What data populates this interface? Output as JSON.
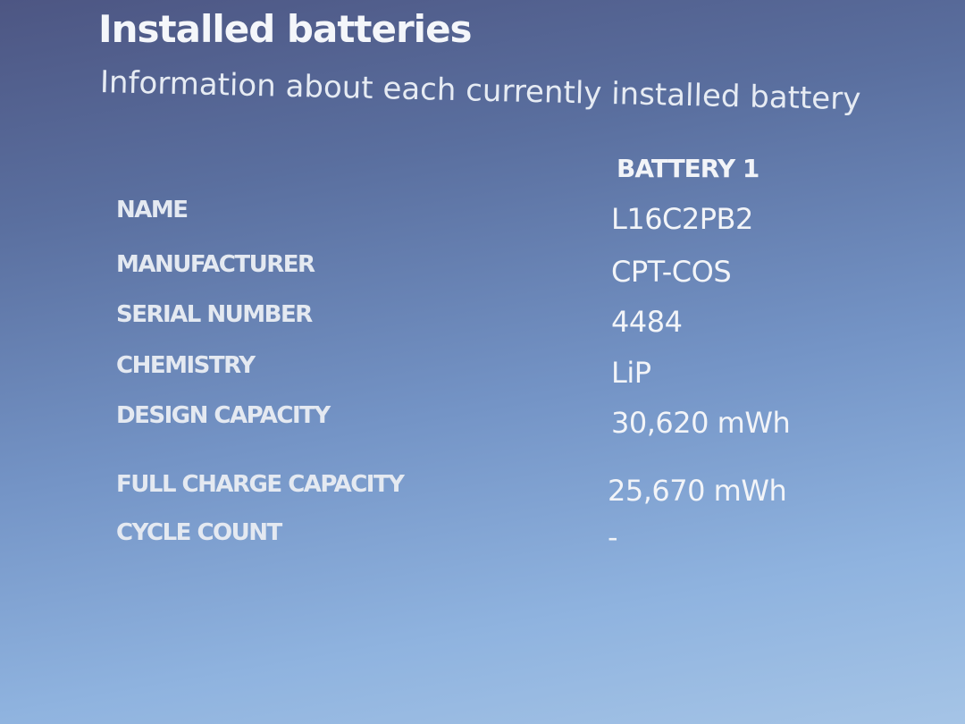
{
  "header": {
    "title": "Installed batteries",
    "subtitle": "Information about each currently installed battery"
  },
  "table": {
    "column_header": "BATTERY 1",
    "rows": [
      {
        "label": "NAME",
        "value": "L16C2PB2"
      },
      {
        "label": "MANUFACTURER",
        "value": "CPT-COS"
      },
      {
        "label": "SERIAL NUMBER",
        "value": "4484"
      },
      {
        "label": "CHEMISTRY",
        "value": "LiP"
      },
      {
        "label": "DESIGN CAPACITY",
        "value": "30,620 mWh"
      },
      {
        "label": "FULL CHARGE CAPACITY",
        "value": "25,670 mWh"
      },
      {
        "label": "CYCLE COUNT",
        "value": "-"
      }
    ]
  }
}
